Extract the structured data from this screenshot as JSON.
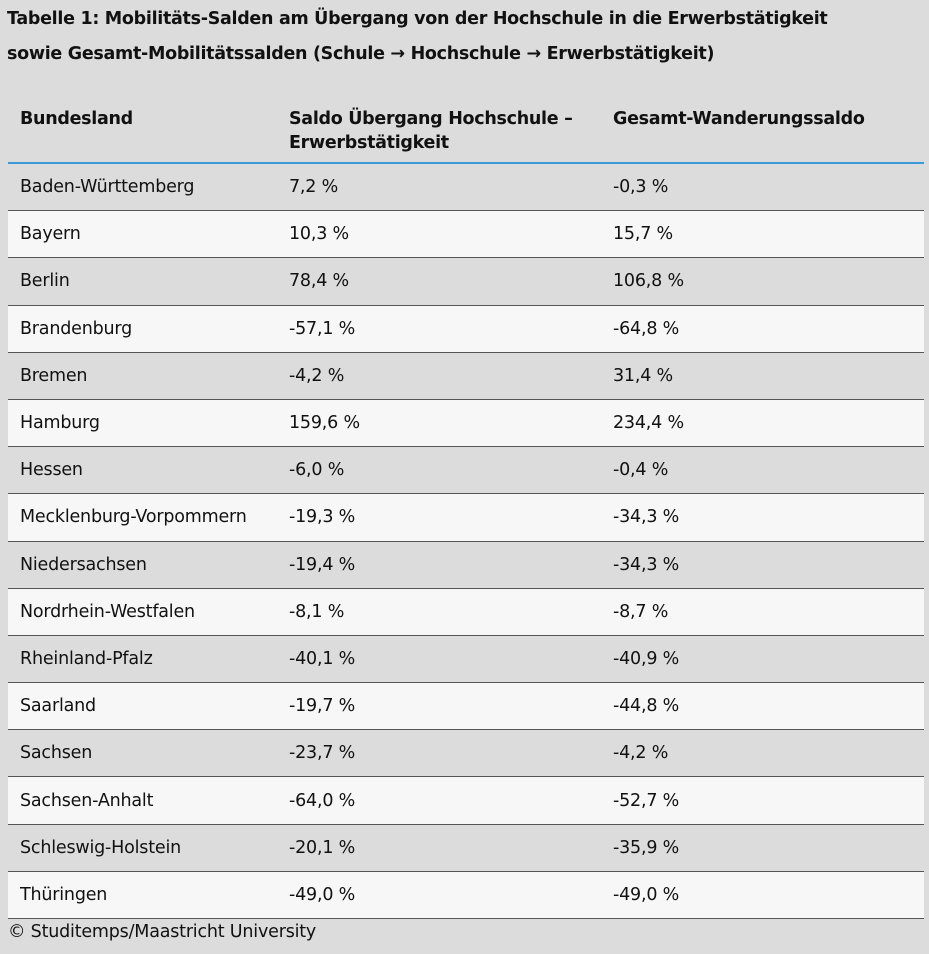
{
  "title_line1": "Tabelle 1: Mobilitäts-Salden am Übergang von der Hochschule in die Erwerbstätigkeit",
  "title_line2": "sowie Gesamt-Mobilitätssalden (Schule → Hochschule → Erwerbstätigkeit)",
  "headers": [
    "Bundesland",
    "Saldo Übergang Hochschule – Erwerbstätigkeit",
    "Gesamt-Wanderungssaldo"
  ],
  "rows": [
    [
      "Baden-Württemberg",
      "7,2 %",
      "-0,3 %"
    ],
    [
      "Bayern",
      "10,3 %",
      "15,7 %"
    ],
    [
      "Berlin",
      "78,4 %",
      "106,8 %"
    ],
    [
      "Brandenburg",
      "-57,1 %",
      "-64,8 %"
    ],
    [
      "Bremen",
      "-4,2 %",
      "31,4 %"
    ],
    [
      "Hamburg",
      "159,6 %",
      "234,4 %"
    ],
    [
      "Hessen",
      "-6,0 %",
      "-0,4 %"
    ],
    [
      "Mecklenburg-Vorpommern",
      "-19,3 %",
      "-34,3 %"
    ],
    [
      "Niedersachsen",
      "-19,4 %",
      "-34,3 %"
    ],
    [
      "Nordrhein-Westfalen",
      "-8,1 %",
      "-8,7 %"
    ],
    [
      "Rheinland-Pfalz",
      "-40,1 %",
      "-40,9 %"
    ],
    [
      "Saarland",
      "-19,7 %",
      "-44,8 %"
    ],
    [
      "Sachsen",
      "-23,7 %",
      "-4,2 %"
    ],
    [
      "Sachsen-Anhalt",
      "-64,0 %",
      "-52,7 %"
    ],
    [
      "Schleswig-Holstein",
      "-20,1 %",
      "-35,9 %"
    ],
    [
      "Thüringen",
      "-49,0 %",
      "-49,0 %"
    ]
  ],
  "footer": "© Studitemps/Maastricht University",
  "colors": {
    "header_rule": "#3a9ad9",
    "background": "#dcdcdc",
    "alt_row": "#f7f7f7"
  }
}
